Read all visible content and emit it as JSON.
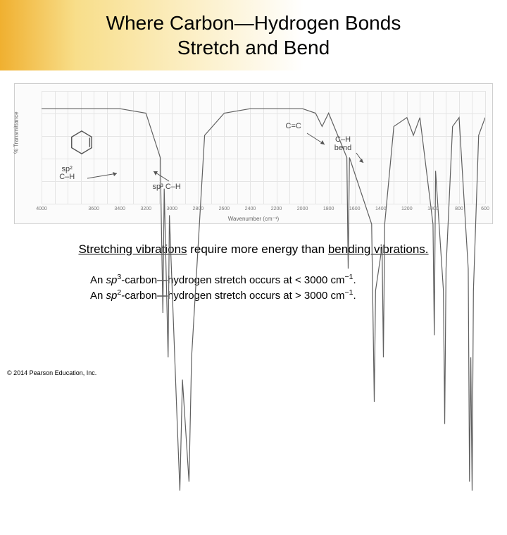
{
  "title_line1": "Where Carbon—Hydrogen Bonds",
  "title_line2": "Stretch and Bend",
  "spectrum": {
    "y_label": "% Transmittance",
    "x_label": "Wavenumber (cm⁻¹)",
    "x_min": 600,
    "x_max": 4000,
    "x_ticks": [
      4000,
      3600,
      3400,
      3200,
      3000,
      2800,
      2600,
      2400,
      2200,
      2000,
      1800,
      1600,
      1400,
      1200,
      1000,
      800,
      600
    ],
    "grid_h_count": 5,
    "grid_v_count": 34,
    "trace_color": "#606060",
    "trace_width": 1.2,
    "background_color": "#fbfbfb",
    "series": [
      {
        "x": 4000,
        "y": 96
      },
      {
        "x": 3800,
        "y": 96
      },
      {
        "x": 3600,
        "y": 96
      },
      {
        "x": 3400,
        "y": 96
      },
      {
        "x": 3200,
        "y": 95
      },
      {
        "x": 3090,
        "y": 85
      },
      {
        "x": 3070,
        "y": 50
      },
      {
        "x": 3060,
        "y": 78
      },
      {
        "x": 3030,
        "y": 40
      },
      {
        "x": 3020,
        "y": 72
      },
      {
        "x": 2960,
        "y": 25
      },
      {
        "x": 2940,
        "y": 10
      },
      {
        "x": 2920,
        "y": 35
      },
      {
        "x": 2870,
        "y": 12
      },
      {
        "x": 2850,
        "y": 40
      },
      {
        "x": 2750,
        "y": 90
      },
      {
        "x": 2600,
        "y": 95
      },
      {
        "x": 2400,
        "y": 96
      },
      {
        "x": 2200,
        "y": 96
      },
      {
        "x": 2000,
        "y": 96
      },
      {
        "x": 1900,
        "y": 95
      },
      {
        "x": 1850,
        "y": 92
      },
      {
        "x": 1800,
        "y": 95
      },
      {
        "x": 1660,
        "y": 85
      },
      {
        "x": 1650,
        "y": 60
      },
      {
        "x": 1640,
        "y": 85
      },
      {
        "x": 1470,
        "y": 70
      },
      {
        "x": 1450,
        "y": 30
      },
      {
        "x": 1440,
        "y": 55
      },
      {
        "x": 1390,
        "y": 65
      },
      {
        "x": 1380,
        "y": 40
      },
      {
        "x": 1370,
        "y": 70
      },
      {
        "x": 1300,
        "y": 92
      },
      {
        "x": 1200,
        "y": 94
      },
      {
        "x": 1150,
        "y": 90
      },
      {
        "x": 1100,
        "y": 94
      },
      {
        "x": 1000,
        "y": 70
      },
      {
        "x": 990,
        "y": 45
      },
      {
        "x": 980,
        "y": 82
      },
      {
        "x": 920,
        "y": 55
      },
      {
        "x": 910,
        "y": 25
      },
      {
        "x": 900,
        "y": 60
      },
      {
        "x": 850,
        "y": 92
      },
      {
        "x": 800,
        "y": 94
      },
      {
        "x": 730,
        "y": 60
      },
      {
        "x": 720,
        "y": 12
      },
      {
        "x": 710,
        "y": 40
      },
      {
        "x": 700,
        "y": 10
      },
      {
        "x": 690,
        "y": 55
      },
      {
        "x": 650,
        "y": 90
      },
      {
        "x": 600,
        "y": 94
      }
    ],
    "labels": {
      "cc": "C=C",
      "ch_bend_l1": "C–H",
      "ch_bend_l2": "bend",
      "sp2_l1": "sp²",
      "sp2_l2": "C–H",
      "sp3": "sp³ C–H"
    }
  },
  "statement_pre": "Stretching vibrations",
  "statement_mid": " require more energy than ",
  "statement_post": "bending vibrations.",
  "detail1_pre": "An ",
  "detail1_em": "sp",
  "detail1_sup": "3",
  "detail1_post": "-carbon—hydrogen stretch occurs at < 3000 cm",
  "detail1_sup2": "−1",
  "detail1_end": ".",
  "detail2_pre": "An ",
  "detail2_em": "sp",
  "detail2_sup": "2",
  "detail2_post": "-carbon—hydrogen stretch occurs at > 3000 cm",
  "detail2_sup2": "−1",
  "detail2_end": ".",
  "copyright": "© 2014 Pearson Education, Inc."
}
